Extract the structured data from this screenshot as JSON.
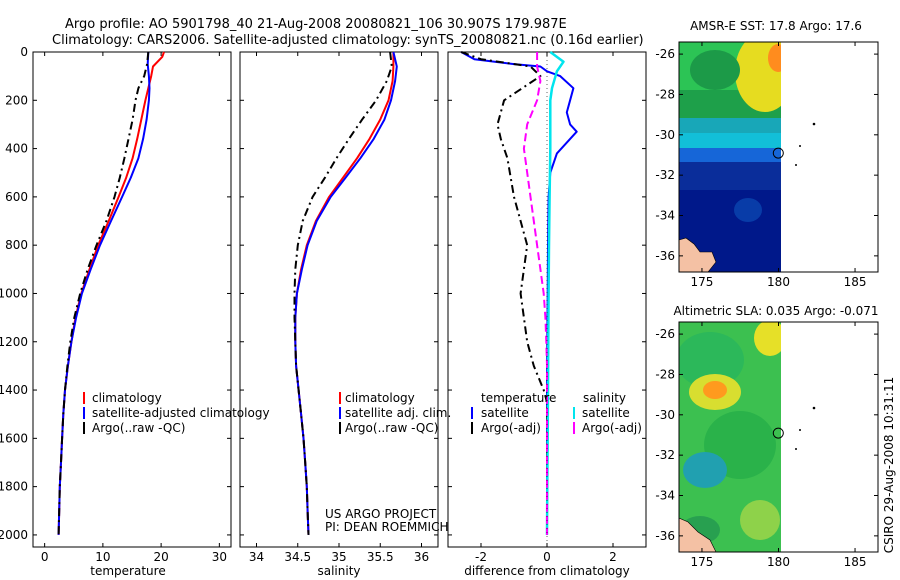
{
  "header": {
    "line1": "Argo profile: AO 5901798_40 21-Aug-2008 20080821_106 30.907S 179.987E",
    "line2": "Climatology: CARS2006. Satellite-adjusted climatology: synTS_20080821.nc (0.16d earlier)"
  },
  "colors": {
    "climatology": "#ff0000",
    "satellite": "#0000ff",
    "argo": "#000000",
    "sal_satellite": "#00e5ee",
    "sal_argo": "#ff00ff"
  },
  "chart_data": [
    {
      "type": "line",
      "id": "temperature",
      "xlabel": "temperature",
      "xlim": [
        -2,
        32
      ],
      "ylim": [
        0,
        2050
      ],
      "y_reversed": true,
      "xticks": [
        0,
        10,
        20,
        30
      ],
      "yticks": [
        0,
        200,
        400,
        600,
        800,
        1000,
        1200,
        1400,
        1600,
        1800,
        2000
      ],
      "legend": {
        "position": "bottom-right",
        "entries": [
          "climatology",
          "satellite-adjusted climatology",
          "Argo(..raw -QC)"
        ]
      },
      "series": [
        {
          "name": "climatology",
          "color_key": "climatology",
          "points": [
            [
              20.5,
              0
            ],
            [
              20.2,
              20
            ],
            [
              18.6,
              60
            ],
            [
              18.3,
              100
            ],
            [
              17.8,
              150
            ],
            [
              17.3,
              200
            ],
            [
              16.6,
              280
            ],
            [
              15.9,
              360
            ],
            [
              15.1,
              440
            ],
            [
              14.0,
              520
            ],
            [
              12.7,
              600
            ],
            [
              11.0,
              700
            ],
            [
              9.2,
              800
            ],
            [
              7.7,
              900
            ],
            [
              6.3,
              1000
            ],
            [
              5.3,
              1100
            ],
            [
              4.6,
              1200
            ],
            [
              4.0,
              1300
            ],
            [
              3.5,
              1400
            ],
            [
              3.2,
              1500
            ],
            [
              3.0,
              1600
            ],
            [
              2.8,
              1700
            ],
            [
              2.6,
              1800
            ],
            [
              2.5,
              1900
            ],
            [
              2.4,
              2000
            ]
          ]
        },
        {
          "name": "satellite-adjusted climatology",
          "color_key": "satellite",
          "points": [
            [
              17.8,
              0
            ],
            [
              17.7,
              50
            ],
            [
              17.9,
              100
            ],
            [
              18.0,
              150
            ],
            [
              17.9,
              200
            ],
            [
              17.5,
              280
            ],
            [
              16.9,
              360
            ],
            [
              16.1,
              440
            ],
            [
              14.8,
              520
            ],
            [
              13.3,
              600
            ],
            [
              11.4,
              700
            ],
            [
              9.5,
              800
            ],
            [
              7.9,
              900
            ],
            [
              6.4,
              1000
            ],
            [
              5.4,
              1100
            ],
            [
              4.6,
              1200
            ],
            [
              4.0,
              1300
            ],
            [
              3.5,
              1400
            ],
            [
              3.2,
              1500
            ],
            [
              3.0,
              1600
            ],
            [
              2.8,
              1700
            ],
            [
              2.6,
              1800
            ],
            [
              2.5,
              1900
            ],
            [
              2.4,
              2000
            ]
          ]
        },
        {
          "name": "Argo(..raw -QC)",
          "color_key": "argo",
          "points": [
            [
              17.8,
              0
            ],
            [
              17.6,
              50
            ],
            [
              17.1,
              100
            ],
            [
              16.1,
              150
            ],
            [
              15.6,
              200
            ],
            [
              15.1,
              280
            ],
            [
              14.4,
              360
            ],
            [
              13.7,
              440
            ],
            [
              12.9,
              520
            ],
            [
              12.0,
              600
            ],
            [
              10.6,
              700
            ],
            [
              8.9,
              800
            ],
            [
              7.4,
              900
            ],
            [
              6.1,
              1000
            ],
            [
              5.1,
              1100
            ],
            [
              4.4,
              1200
            ],
            [
              3.9,
              1300
            ],
            [
              3.5,
              1400
            ],
            [
              3.2,
              1500
            ],
            [
              3.0,
              1600
            ],
            [
              2.8,
              1700
            ],
            [
              2.6,
              1800
            ],
            [
              2.5,
              1900
            ],
            [
              2.4,
              2000
            ]
          ]
        }
      ]
    },
    {
      "type": "line",
      "id": "salinity",
      "xlabel": "salinity",
      "xlim": [
        33.8,
        36.2
      ],
      "ylim": [
        0,
        2050
      ],
      "y_reversed": true,
      "xticks": [
        34,
        34.5,
        35,
        35.5,
        36
      ],
      "legend": {
        "position": "bottom-right",
        "entries": [
          "climatology",
          "satellite adj. clim.",
          "Argo(..raw -QC)"
        ]
      },
      "annotation": [
        "US ARGO PROJECT",
        "PI: DEAN ROEMMICH"
      ],
      "series": [
        {
          "name": "climatology",
          "color_key": "climatology",
          "points": [
            [
              35.66,
              0
            ],
            [
              35.66,
              60
            ],
            [
              35.65,
              120
            ],
            [
              35.6,
              200
            ],
            [
              35.5,
              280
            ],
            [
              35.37,
              360
            ],
            [
              35.22,
              440
            ],
            [
              35.05,
              520
            ],
            [
              34.88,
              600
            ],
            [
              34.72,
              700
            ],
            [
              34.61,
              800
            ],
            [
              34.54,
              900
            ],
            [
              34.49,
              1000
            ],
            [
              34.47,
              1100
            ],
            [
              34.47,
              1200
            ],
            [
              34.48,
              1300
            ],
            [
              34.51,
              1400
            ],
            [
              34.54,
              1500
            ],
            [
              34.57,
              1600
            ],
            [
              34.59,
              1700
            ],
            [
              34.61,
              1800
            ],
            [
              34.62,
              1900
            ],
            [
              34.63,
              2000
            ]
          ]
        },
        {
          "name": "satellite adj. clim.",
          "color_key": "satellite",
          "points": [
            [
              35.66,
              0
            ],
            [
              35.7,
              60
            ],
            [
              35.68,
              120
            ],
            [
              35.63,
              200
            ],
            [
              35.55,
              280
            ],
            [
              35.42,
              360
            ],
            [
              35.26,
              440
            ],
            [
              35.08,
              520
            ],
            [
              34.9,
              600
            ],
            [
              34.73,
              700
            ],
            [
              34.62,
              800
            ],
            [
              34.55,
              900
            ],
            [
              34.49,
              1000
            ],
            [
              34.47,
              1100
            ],
            [
              34.47,
              1200
            ],
            [
              34.48,
              1300
            ],
            [
              34.51,
              1400
            ],
            [
              34.54,
              1500
            ],
            [
              34.57,
              1600
            ],
            [
              34.59,
              1700
            ],
            [
              34.61,
              1800
            ],
            [
              34.62,
              1900
            ],
            [
              34.63,
              2000
            ]
          ]
        },
        {
          "name": "Argo(..raw -QC)",
          "color_key": "argo",
          "points": [
            [
              35.62,
              0
            ],
            [
              35.64,
              60
            ],
            [
              35.58,
              120
            ],
            [
              35.45,
              200
            ],
            [
              35.28,
              280
            ],
            [
              35.12,
              360
            ],
            [
              34.97,
              440
            ],
            [
              34.83,
              520
            ],
            [
              34.68,
              600
            ],
            [
              34.56,
              700
            ],
            [
              34.5,
              800
            ],
            [
              34.47,
              900
            ],
            [
              34.46,
              1000
            ],
            [
              34.46,
              1100
            ],
            [
              34.47,
              1200
            ],
            [
              34.48,
              1300
            ],
            [
              34.51,
              1400
            ],
            [
              34.54,
              1500
            ],
            [
              34.57,
              1600
            ],
            [
              34.59,
              1700
            ],
            [
              34.61,
              1800
            ],
            [
              34.62,
              1900
            ],
            [
              34.63,
              2000
            ]
          ]
        }
      ]
    },
    {
      "type": "line",
      "id": "difference",
      "xlabel": "difference from climatology",
      "xlim": [
        -3,
        3
      ],
      "ylim": [
        0,
        2050
      ],
      "y_reversed": true,
      "xticks": [
        -2,
        0,
        2
      ],
      "legend": {
        "position": "bottom",
        "temperature_heading": "temperature",
        "salinity_heading": "salinity",
        "entries": [
          "satellite",
          "Argo(-adj)",
          "satellite",
          "Argo(-adj)"
        ]
      },
      "series": [
        {
          "name": "satellite",
          "group": "temperature",
          "color_key": "satellite",
          "points": [
            [
              -2.6,
              0
            ],
            [
              -2.2,
              30
            ],
            [
              -1.0,
              50
            ],
            [
              -0.2,
              60
            ],
            [
              0.0,
              80
            ],
            [
              0.4,
              100
            ],
            [
              0.8,
              150
            ],
            [
              0.7,
              200
            ],
            [
              0.6,
              250
            ],
            [
              0.7,
              300
            ],
            [
              0.9,
              330
            ],
            [
              0.7,
              360
            ],
            [
              0.3,
              420
            ],
            [
              0.1,
              500
            ],
            [
              0.05,
              600
            ],
            [
              0.03,
              800
            ],
            [
              0.02,
              1000
            ],
            [
              0.01,
              1200
            ],
            [
              0.0,
              1400
            ],
            [
              0.0,
              2000
            ]
          ]
        },
        {
          "name": "Argo(-adj)",
          "group": "temperature",
          "color_key": "argo",
          "points": [
            [
              -2.6,
              0
            ],
            [
              -2.0,
              30
            ],
            [
              -0.5,
              60
            ],
            [
              -0.2,
              100
            ],
            [
              -1.3,
              200
            ],
            [
              -1.5,
              300
            ],
            [
              -1.4,
              360
            ],
            [
              -1.2,
              440
            ],
            [
              -1.1,
              520
            ],
            [
              -1.0,
              600
            ],
            [
              -0.8,
              700
            ],
            [
              -0.6,
              800
            ],
            [
              -0.7,
              900
            ],
            [
              -0.8,
              1000
            ],
            [
              -0.7,
              1100
            ],
            [
              -0.6,
              1200
            ],
            [
              -0.4,
              1300
            ],
            [
              -0.1,
              1400
            ],
            [
              0.0,
              1450
            ],
            [
              0.0,
              2000
            ]
          ]
        },
        {
          "name": "satellite",
          "group": "salinity",
          "color_key": "sal_satellite",
          "points": [
            [
              0.1,
              0
            ],
            [
              0.5,
              40
            ],
            [
              0.3,
              80
            ],
            [
              0.15,
              150
            ],
            [
              0.1,
              200
            ],
            [
              0.1,
              400
            ],
            [
              0.08,
              600
            ],
            [
              0.06,
              800
            ],
            [
              0.05,
              1000
            ],
            [
              0.04,
              1200
            ],
            [
              0.03,
              1400
            ],
            [
              0.02,
              1600
            ],
            [
              0.01,
              1800
            ],
            [
              0.0,
              2000
            ]
          ]
        },
        {
          "name": "Argo(-adj)",
          "group": "salinity",
          "color_key": "sal_argo",
          "points": [
            [
              -0.3,
              0
            ],
            [
              -0.3,
              60
            ],
            [
              -0.2,
              120
            ],
            [
              -0.3,
              200
            ],
            [
              -0.6,
              300
            ],
            [
              -0.7,
              400
            ],
            [
              -0.6,
              500
            ],
            [
              -0.5,
              600
            ],
            [
              -0.4,
              700
            ],
            [
              -0.3,
              800
            ],
            [
              -0.2,
              900
            ],
            [
              -0.1,
              1000
            ],
            [
              -0.05,
              1100
            ],
            [
              -0.02,
              1200
            ],
            [
              0.0,
              1300
            ],
            [
              0.0,
              2000
            ]
          ]
        }
      ]
    },
    {
      "type": "heatmap",
      "id": "sst_map",
      "title": "AMSR-E SST: 17.8 Argo: 17.6",
      "xlim": [
        173.5,
        186.5
      ],
      "ylim": [
        -36.8,
        -25.4
      ],
      "xticks": [
        175,
        180,
        185
      ],
      "yticks": [
        -26,
        -28,
        -30,
        -32,
        -34,
        -36
      ],
      "data_extent_lon": [
        174,
        180
      ],
      "profile_location": {
        "lon": 179.987,
        "lat": -30.907
      }
    },
    {
      "type": "heatmap",
      "id": "sla_map",
      "title": "Altimetric SLA: 0.035 Argo: -0.071",
      "xlim": [
        173.5,
        186.5
      ],
      "ylim": [
        -36.8,
        -25.4
      ],
      "xticks": [
        175,
        180,
        185
      ],
      "yticks": [
        -26,
        -28,
        -30,
        -32,
        -34,
        -36
      ],
      "data_extent_lon": [
        174,
        180
      ],
      "profile_location": {
        "lon": 179.987,
        "lat": -30.907
      }
    }
  ],
  "footer": {
    "stamp": "CSIRO 29-Aug-2008 10:31:11"
  }
}
